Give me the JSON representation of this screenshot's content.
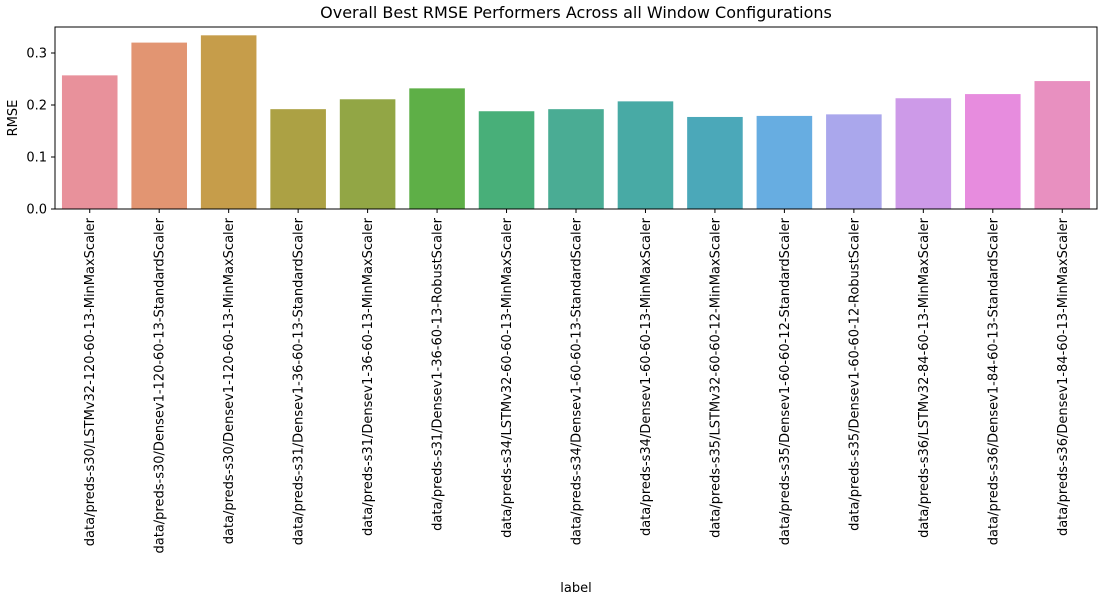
{
  "chart_data": {
    "type": "bar",
    "title": "Overall Best RMSE Performers Across all Window Configurations",
    "xlabel": "label",
    "ylabel": "RMSE",
    "ylim": [
      0,
      0.35
    ],
    "yticks": [
      0.0,
      0.1,
      0.2,
      0.3
    ],
    "ytick_labels": [
      "0.0",
      "0.1",
      "0.2",
      "0.3"
    ],
    "grid": false,
    "categories": [
      "data/preds-s30/LSTMv32-120-60-13-MinMaxScaler",
      "data/preds-s30/Densev1-120-60-13-StandardScaler",
      "data/preds-s30/Densev1-120-60-13-MinMaxScaler",
      "data/preds-s31/Densev1-36-60-13-StandardScaler",
      "data/preds-s31/Densev1-36-60-13-MinMaxScaler",
      "data/preds-s31/Densev1-36-60-13-RobustScaler",
      "data/preds-s34/LSTMv32-60-60-13-MinMaxScaler",
      "data/preds-s34/Densev1-60-60-13-StandardScaler",
      "data/preds-s34/Densev1-60-60-13-MinMaxScaler",
      "data/preds-s35/LSTMv32-60-60-12-MinMaxScaler",
      "data/preds-s35/Densev1-60-60-12-StandardScaler",
      "data/preds-s35/Densev1-60-60-12-RobustScaler",
      "data/preds-s36/LSTMv32-84-60-13-MinMaxScaler",
      "data/preds-s36/Densev1-84-60-13-StandardScaler",
      "data/preds-s36/Densev1-84-60-13-MinMaxScaler"
    ],
    "values": [
      0.257,
      0.32,
      0.334,
      0.192,
      0.211,
      0.232,
      0.188,
      0.192,
      0.207,
      0.177,
      0.179,
      0.182,
      0.213,
      0.221,
      0.246
    ],
    "colors": [
      "#e8919b",
      "#e29572",
      "#c69d4a",
      "#aca144",
      "#92a645",
      "#5eaf47",
      "#48af79",
      "#4aac94",
      "#48aaa5",
      "#4ba8b9",
      "#67ade1",
      "#aaa7ec",
      "#cd9ae8",
      "#e78cde",
      "#e890c0"
    ]
  }
}
